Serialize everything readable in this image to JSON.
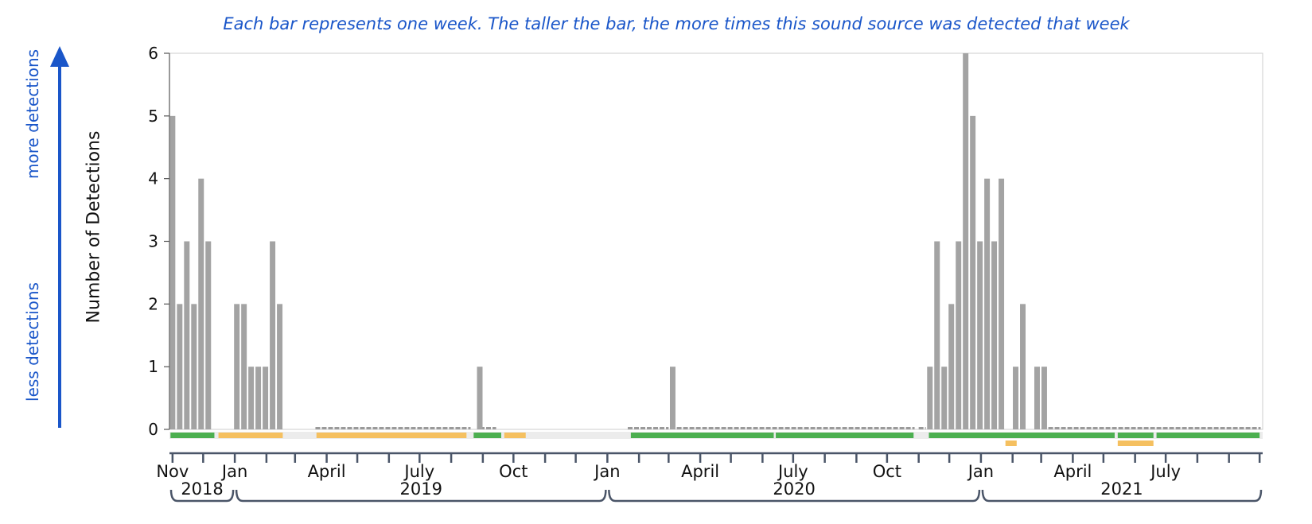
{
  "caption": "Each bar represents one week. The taller the bar, the more times this sound source was detected that week",
  "side_labels": {
    "more": "more detections",
    "less": "less detections"
  },
  "colors": {
    "bar": "#a3a3a3",
    "zero_dash": "#9a9a9a",
    "green": "#4caf50",
    "yellow": "#f5c060",
    "axis": "#4a5568",
    "accent": "#1a56c9"
  },
  "chart_data": {
    "type": "bar",
    "ylabel": "Number of Detections",
    "ylim": [
      0,
      6
    ],
    "yticks": [
      0,
      1,
      2,
      3,
      4,
      5,
      6
    ],
    "x_range": [
      "2018-10-29",
      "2021-10-04"
    ],
    "bars": [
      {
        "x": "2018-11-01",
        "y": 5
      },
      {
        "x": "2018-11-08",
        "y": 2
      },
      {
        "x": "2018-11-15",
        "y": 3
      },
      {
        "x": "2018-11-22",
        "y": 2
      },
      {
        "x": "2018-11-29",
        "y": 4
      },
      {
        "x": "2018-12-06",
        "y": 3
      },
      {
        "x": "2019-01-03",
        "y": 2
      },
      {
        "x": "2019-01-10",
        "y": 2
      },
      {
        "x": "2019-01-17",
        "y": 1
      },
      {
        "x": "2019-01-24",
        "y": 1
      },
      {
        "x": "2019-01-31",
        "y": 1
      },
      {
        "x": "2019-02-07",
        "y": 3
      },
      {
        "x": "2019-02-14",
        "y": 2
      },
      {
        "x": "2019-08-29",
        "y": 1
      },
      {
        "x": "2020-03-05",
        "y": 1
      },
      {
        "x": "2020-11-12",
        "y": 1
      },
      {
        "x": "2020-11-19",
        "y": 3
      },
      {
        "x": "2020-11-26",
        "y": 1
      },
      {
        "x": "2020-12-03",
        "y": 2
      },
      {
        "x": "2020-12-10",
        "y": 3
      },
      {
        "x": "2020-12-17",
        "y": 6
      },
      {
        "x": "2020-12-24",
        "y": 5
      },
      {
        "x": "2020-12-31",
        "y": 3
      },
      {
        "x": "2021-01-07",
        "y": 4
      },
      {
        "x": "2021-01-14",
        "y": 3
      },
      {
        "x": "2021-01-21",
        "y": 4
      },
      {
        "x": "2021-02-04",
        "y": 1
      },
      {
        "x": "2021-02-11",
        "y": 2
      },
      {
        "x": "2021-02-25",
        "y": 1
      },
      {
        "x": "2021-03-04",
        "y": 1
      }
    ],
    "zero_segments": [
      [
        "2019-03-21",
        "2019-08-20"
      ],
      [
        "2019-08-29",
        "2019-09-14"
      ],
      [
        "2020-01-21",
        "2020-03-01"
      ],
      [
        "2020-03-09",
        "2020-10-28"
      ],
      [
        "2020-11-01",
        "2020-11-08"
      ],
      [
        "2021-03-08",
        "2021-10-02"
      ]
    ],
    "coverage": [
      {
        "color": "green",
        "lane": 0,
        "from": "2018-10-30",
        "to": "2018-12-12"
      },
      {
        "color": "yellow",
        "lane": 0,
        "from": "2018-12-16",
        "to": "2019-02-17"
      },
      {
        "color": "yellow",
        "lane": 0,
        "from": "2019-03-22",
        "to": "2019-08-16"
      },
      {
        "color": "green",
        "lane": 0,
        "from": "2019-08-23",
        "to": "2019-09-19"
      },
      {
        "color": "yellow",
        "lane": 0,
        "from": "2019-09-22",
        "to": "2019-10-13"
      },
      {
        "color": "green",
        "lane": 0,
        "from": "2020-01-24",
        "to": "2020-06-12"
      },
      {
        "color": "green",
        "lane": 0,
        "from": "2020-06-14",
        "to": "2020-10-27"
      },
      {
        "color": "green",
        "lane": 0,
        "from": "2020-11-11",
        "to": "2021-03-05"
      },
      {
        "color": "green",
        "lane": 0,
        "from": "2021-01-25",
        "to": "2021-02-05"
      },
      {
        "color": "yellow",
        "lane": 1,
        "from": "2021-01-25",
        "to": "2021-02-05"
      },
      {
        "color": "green",
        "lane": 0,
        "from": "2021-02-12",
        "to": "2021-05-12"
      },
      {
        "color": "green",
        "lane": 0,
        "from": "2021-05-15",
        "to": "2021-06-19"
      },
      {
        "color": "yellow",
        "lane": 1,
        "from": "2021-05-15",
        "to": "2021-06-19"
      },
      {
        "color": "green",
        "lane": 0,
        "from": "2021-06-22",
        "to": "2021-10-01"
      }
    ],
    "month_ticks": [
      {
        "date": "2018-11-01",
        "label": "Nov"
      },
      {
        "date": "2018-12-01",
        "label": ""
      },
      {
        "date": "2019-01-01",
        "label": "Jan"
      },
      {
        "date": "2019-02-01",
        "label": ""
      },
      {
        "date": "2019-03-01",
        "label": ""
      },
      {
        "date": "2019-04-01",
        "label": "April"
      },
      {
        "date": "2019-05-01",
        "label": ""
      },
      {
        "date": "2019-06-01",
        "label": ""
      },
      {
        "date": "2019-07-01",
        "label": "July"
      },
      {
        "date": "2019-08-01",
        "label": ""
      },
      {
        "date": "2019-09-01",
        "label": ""
      },
      {
        "date": "2019-10-01",
        "label": "Oct"
      },
      {
        "date": "2019-11-01",
        "label": ""
      },
      {
        "date": "2019-12-01",
        "label": ""
      },
      {
        "date": "2020-01-01",
        "label": "Jan"
      },
      {
        "date": "2020-02-01",
        "label": ""
      },
      {
        "date": "2020-03-01",
        "label": ""
      },
      {
        "date": "2020-04-01",
        "label": "April"
      },
      {
        "date": "2020-05-01",
        "label": ""
      },
      {
        "date": "2020-06-01",
        "label": ""
      },
      {
        "date": "2020-07-01",
        "label": "July"
      },
      {
        "date": "2020-08-01",
        "label": ""
      },
      {
        "date": "2020-09-01",
        "label": ""
      },
      {
        "date": "2020-10-01",
        "label": "Oct"
      },
      {
        "date": "2020-11-01",
        "label": ""
      },
      {
        "date": "2020-12-01",
        "label": ""
      },
      {
        "date": "2021-01-01",
        "label": "Jan"
      },
      {
        "date": "2021-02-01",
        "label": ""
      },
      {
        "date": "2021-03-01",
        "label": ""
      },
      {
        "date": "2021-04-01",
        "label": "April"
      },
      {
        "date": "2021-05-01",
        "label": ""
      },
      {
        "date": "2021-06-01",
        "label": ""
      },
      {
        "date": "2021-07-01",
        "label": "July"
      },
      {
        "date": "2021-08-01",
        "label": ""
      },
      {
        "date": "2021-09-01",
        "label": ""
      },
      {
        "date": "2021-10-01",
        "label": ""
      }
    ],
    "years": [
      {
        "label": "2018",
        "from": "2018-10-29",
        "to": "2019-01-01"
      },
      {
        "label": "2019",
        "from": "2019-01-01",
        "to": "2020-01-01"
      },
      {
        "label": "2020",
        "from": "2020-01-01",
        "to": "2021-01-01"
      },
      {
        "label": "2021",
        "from": "2021-01-01",
        "to": "2021-10-04"
      }
    ]
  }
}
